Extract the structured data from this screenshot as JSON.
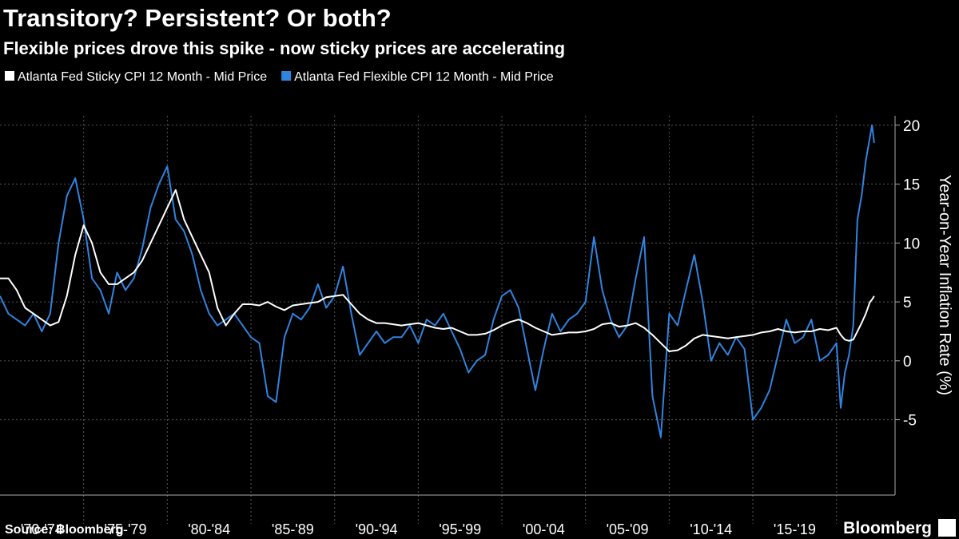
{
  "chart_data": {
    "type": "line",
    "title": "Transitory? Persistent? Or both?",
    "subtitle": "Flexible prices drove this spike - now sticky prices are accelerating",
    "y_axis_label": "Year-on-Year Inflation Rate (%)",
    "source": "Source: Bloomberg",
    "brand": "Bloomberg",
    "x": [
      1970,
      1970.5,
      1971,
      1971.5,
      1972,
      1972.5,
      1973,
      1973.5,
      1974,
      1974.5,
      1975,
      1975.5,
      1976,
      1976.5,
      1977,
      1977.5,
      1978,
      1978.5,
      1979,
      1979.5,
      1980,
      1980.5,
      1981,
      1981.5,
      1982,
      1982.5,
      1983,
      1983.5,
      1984,
      1984.5,
      1985,
      1985.5,
      1986,
      1986.5,
      1987,
      1987.5,
      1988,
      1988.5,
      1989,
      1989.5,
      1990,
      1990.5,
      1991,
      1991.5,
      1992,
      1992.5,
      1993,
      1993.5,
      1994,
      1994.5,
      1995,
      1995.5,
      1996,
      1996.5,
      1997,
      1997.5,
      1998,
      1998.5,
      1999,
      1999.5,
      2000,
      2000.5,
      2001,
      2001.5,
      2002,
      2002.5,
      2003,
      2003.5,
      2004,
      2004.5,
      2005,
      2005.5,
      2006,
      2006.5,
      2007,
      2007.5,
      2008,
      2008.5,
      2009,
      2009.5,
      2010,
      2010.5,
      2011,
      2011.5,
      2012,
      2012.5,
      2013,
      2013.5,
      2014,
      2014.5,
      2015,
      2015.5,
      2016,
      2016.5,
      2017,
      2017.5,
      2018,
      2018.5,
      2019,
      2019.5,
      2020,
      2020.25,
      2020.5,
      2020.75,
      2021,
      2021.25,
      2021.5,
      2021.75,
      2022,
      2022.125,
      2022.25
    ],
    "series": [
      {
        "name": "Atlanta Fed Sticky CPI 12 Month - Mid Price",
        "color": "#ffffff",
        "values": [
          7.0,
          7.0,
          6.0,
          4.5,
          4.0,
          3.5,
          3.0,
          3.3,
          5.5,
          9.0,
          11.5,
          10.0,
          7.5,
          6.5,
          6.5,
          7.0,
          7.5,
          8.5,
          10.0,
          11.5,
          13.0,
          14.5,
          12.0,
          10.5,
          9.0,
          7.5,
          4.5,
          3.0,
          4.0,
          4.8,
          4.8,
          4.7,
          5.0,
          4.6,
          4.3,
          4.7,
          4.8,
          4.9,
          5.0,
          5.4,
          5.5,
          5.6,
          4.8,
          4.0,
          3.5,
          3.2,
          3.2,
          3.1,
          3.0,
          3.1,
          3.2,
          3.0,
          2.8,
          2.7,
          2.8,
          2.5,
          2.2,
          2.2,
          2.3,
          2.6,
          3.0,
          3.3,
          3.5,
          3.2,
          2.8,
          2.5,
          2.2,
          2.3,
          2.4,
          2.4,
          2.5,
          2.7,
          3.1,
          3.2,
          2.9,
          3.0,
          3.2,
          2.8,
          2.2,
          1.5,
          0.8,
          0.9,
          1.3,
          1.9,
          2.2,
          2.1,
          2.0,
          1.9,
          2.0,
          2.1,
          2.2,
          2.4,
          2.5,
          2.7,
          2.5,
          2.4,
          2.5,
          2.5,
          2.7,
          2.6,
          2.8,
          2.2,
          1.8,
          1.7,
          1.8,
          2.5,
          3.2,
          4.0,
          5.0,
          5.2,
          5.5
        ]
      },
      {
        "name": "Atlanta Fed Flexible CPI 12 Month - Mid Price",
        "color": "#2f84e0",
        "values": [
          5.5,
          4.0,
          3.5,
          3.0,
          4.0,
          2.5,
          4.0,
          10.0,
          14.0,
          15.5,
          12.0,
          7.0,
          6.0,
          4.0,
          7.5,
          6.0,
          7.0,
          9.5,
          13.0,
          15.0,
          16.5,
          12.0,
          11.0,
          9.0,
          6.0,
          4.0,
          3.0,
          3.5,
          4.0,
          3.0,
          2.0,
          1.5,
          -3.0,
          -3.5,
          2.0,
          4.0,
          3.5,
          4.5,
          6.5,
          4.5,
          5.5,
          8.0,
          4.0,
          0.5,
          1.5,
          2.5,
          1.5,
          2.0,
          2.0,
          3.0,
          1.5,
          3.5,
          3.0,
          4.0,
          2.5,
          1.0,
          -1.0,
          0.0,
          0.5,
          3.5,
          5.5,
          6.0,
          4.5,
          1.0,
          -2.5,
          1.0,
          4.0,
          2.5,
          3.5,
          4.0,
          5.0,
          10.5,
          6.0,
          3.5,
          2.0,
          3.0,
          7.0,
          10.5,
          -3.0,
          -6.5,
          4.0,
          3.0,
          6.0,
          9.0,
          5.0,
          0.0,
          1.5,
          0.5,
          2.0,
          1.0,
          -5.0,
          -4.0,
          -2.5,
          0.5,
          3.5,
          1.5,
          2.0,
          3.5,
          0.0,
          0.5,
          1.5,
          -4.0,
          -1.0,
          0.5,
          3.0,
          12.0,
          14.0,
          17.0,
          19.0,
          20.0,
          18.5
        ]
      }
    ],
    "xlim": [
      1970,
      2023.5
    ],
    "xticks": [
      {
        "value": 1972.5,
        "label": "'70-'74"
      },
      {
        "value": 1977.5,
        "label": "'75-'79"
      },
      {
        "value": 1982.5,
        "label": "'80-'84"
      },
      {
        "value": 1987.5,
        "label": "'85-'89"
      },
      {
        "value": 1992.5,
        "label": "'90-'94"
      },
      {
        "value": 1997.5,
        "label": "'95-'99"
      },
      {
        "value": 2002.5,
        "label": "'00-'04"
      },
      {
        "value": 2007.5,
        "label": "'05-'09"
      },
      {
        "value": 2012.5,
        "label": "'10-'14"
      },
      {
        "value": 2017.5,
        "label": "'15-'19"
      }
    ],
    "xgrid": [
      1975,
      1980,
      1985,
      1990,
      1995,
      2000,
      2005,
      2010,
      2015,
      2020
    ],
    "ylim": [
      -11.4,
      20.8
    ],
    "yticks": [
      -5,
      0,
      5,
      10,
      15,
      20
    ],
    "grid": true,
    "legend": "top-left"
  }
}
